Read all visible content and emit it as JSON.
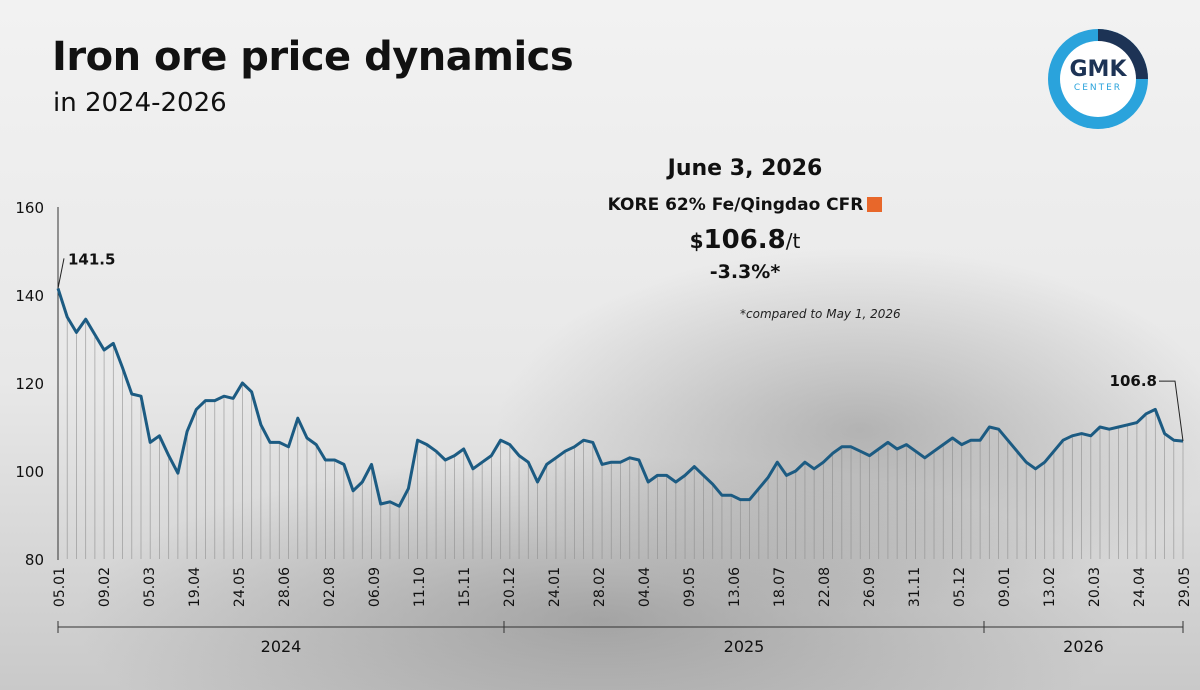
{
  "header": {
    "title": "Iron ore price dynamics",
    "subtitle": "in 2024-2026"
  },
  "logo": {
    "text": "GMK",
    "subtext": "CENTER"
  },
  "info": {
    "date": "June 3, 2026",
    "series_label": "KORE 62% Fe/Qingdao CFR",
    "currency": "$",
    "price": "106.8",
    "unit": "/t",
    "change": "-3.3%*",
    "footnote": "*compared to May 1, 2026"
  },
  "colors": {
    "line": "#1c5b82",
    "marker": "#e8672a",
    "logo_dark": "#1d3355",
    "logo_light": "#2aa3dc"
  },
  "chart_data": {
    "type": "line",
    "title": "Iron ore price dynamics",
    "ylim": [
      80,
      160
    ],
    "yticks": [
      80,
      100,
      120,
      140,
      160
    ],
    "xticks": [
      "05.01",
      "09.02",
      "05.03",
      "19.04",
      "24.05",
      "28.06",
      "02.08",
      "06.09",
      "11.10",
      "15.11",
      "20.12",
      "24.01",
      "28.02",
      "04.04",
      "09.05",
      "13.06",
      "18.07",
      "22.08",
      "26.09",
      "31.11",
      "05.12",
      "09.01",
      "13.02",
      "20.03",
      "24.04",
      "29.05"
    ],
    "years": [
      "2024",
      "2025",
      "2026"
    ],
    "series": [
      {
        "name": "KORE 62% Fe/Qingdao CFR",
        "values": [
          141.5,
          135,
          131.5,
          134.5,
          131,
          127.5,
          129,
          123.5,
          117.5,
          117,
          106.5,
          108,
          103.5,
          99.5,
          109,
          114,
          116,
          116,
          117,
          116.5,
          120,
          118,
          110.5,
          106.5,
          106.5,
          105.5,
          112,
          107.5,
          106,
          102.5,
          102.5,
          101.5,
          95.5,
          97.5,
          101.5,
          92.5,
          93,
          92,
          96,
          107,
          106,
          104.5,
          102.5,
          103.5,
          105,
          100.5,
          102,
          103.5,
          107,
          106,
          103.5,
          102,
          97.5,
          101.5,
          103,
          104.5,
          105.5,
          107,
          106.5,
          101.5,
          102,
          102,
          103,
          102.5,
          97.5,
          99,
          99,
          97.5,
          99,
          101,
          99,
          97,
          94.5,
          94.5,
          93.5,
          93.5,
          96,
          98.5,
          102,
          99,
          100,
          102,
          100.5,
          102,
          104,
          105.5,
          105.5,
          104.5,
          103.5,
          105,
          106.5,
          105,
          106,
          104.5,
          103,
          104.5,
          106,
          107.5,
          106,
          107,
          107,
          110,
          109.5,
          107,
          104.5,
          102,
          100.5,
          102,
          104.5,
          107,
          108,
          108.5,
          108,
          110,
          109.5,
          110,
          110.5,
          111,
          113,
          114,
          108.5,
          107,
          106.8
        ]
      }
    ],
    "annotations": [
      {
        "label": "141.5",
        "value": 141.5,
        "at": "first"
      },
      {
        "label": "106.8",
        "value": 106.8,
        "at": "last"
      }
    ],
    "grid": false
  }
}
